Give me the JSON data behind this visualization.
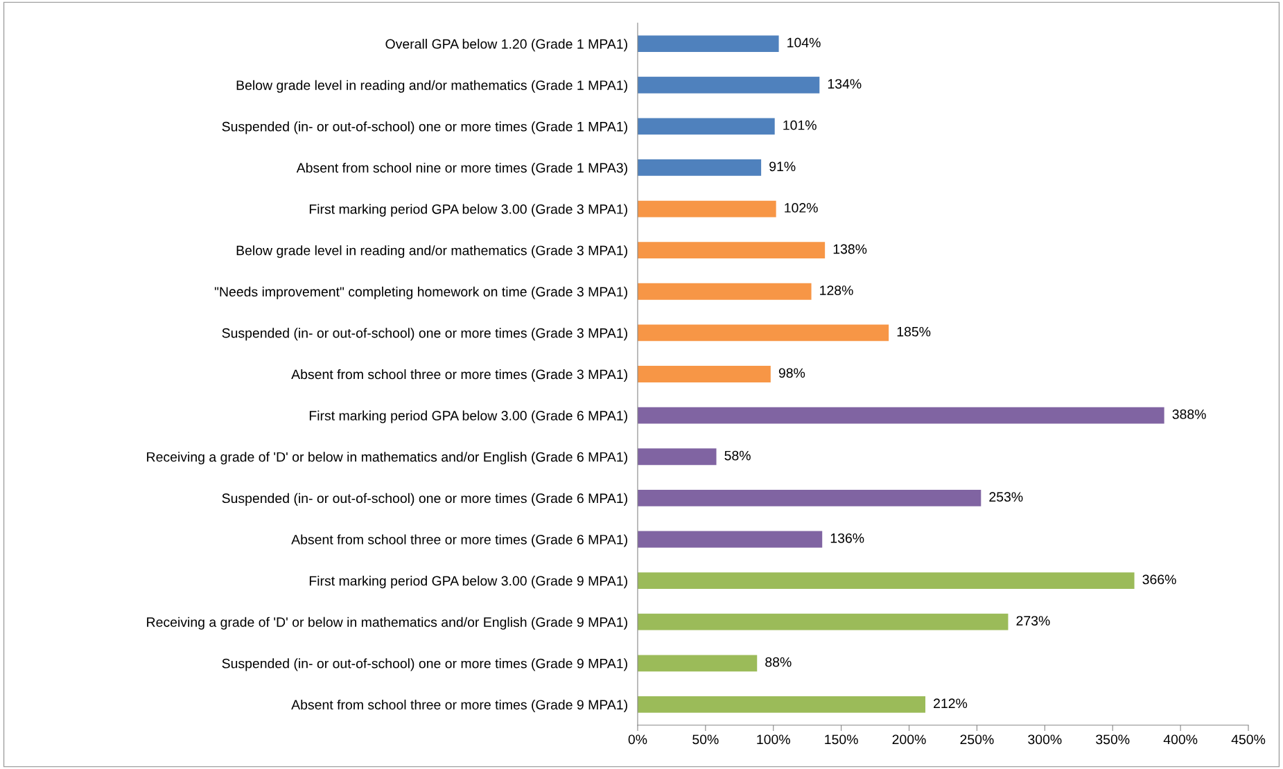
{
  "chart_data": {
    "type": "bar",
    "orientation": "horizontal",
    "categories": [
      "Overall GPA below 1.20 (Grade 1 MPA1)",
      "Below grade level in reading and/or mathematics (Grade 1 MPA1)",
      "Suspended (in- or out-of-school) one or more times (Grade 1 MPA1)",
      "Absent from school nine or more times (Grade 1 MPA3)",
      "First marking period GPA below 3.00 (Grade 3 MPA1)",
      "Below grade level in reading and/or mathematics (Grade 3 MPA1)",
      "\"Needs improvement\" completing homework on time (Grade 3 MPA1)",
      "Suspended (in- or out-of-school) one or more times (Grade 3 MPA1)",
      "Absent from school three or more times (Grade 3 MPA1)",
      "First marking period GPA below 3.00 (Grade 6 MPA1)",
      "Receiving a grade of 'D' or below in mathematics and/or English (Grade 6 MPA1)",
      "Suspended (in- or out-of-school) one or more times (Grade 6 MPA1)",
      "Absent from school three or more times (Grade 6 MPA1)",
      "First marking period GPA below 3.00 (Grade 9 MPA1)",
      "Receiving a grade of 'D' or below in mathematics and/or English (Grade 9 MPA1)",
      "Suspended (in- or out-of-school) one or more times (Grade 9 MPA1)",
      "Absent from school three or more times (Grade 9 MPA1)"
    ],
    "values": [
      104,
      134,
      101,
      91,
      102,
      138,
      128,
      185,
      98,
      388,
      58,
      253,
      136,
      366,
      273,
      88,
      212
    ],
    "value_labels": [
      "104%",
      "134%",
      "101%",
      "91%",
      "102%",
      "138%",
      "128%",
      "185%",
      "98%",
      "388%",
      "58%",
      "253%",
      "136%",
      "366%",
      "273%",
      "88%",
      "212%"
    ],
    "colors": [
      "#4f81bd",
      "#4f81bd",
      "#4f81bd",
      "#4f81bd",
      "#f79646",
      "#f79646",
      "#f79646",
      "#f79646",
      "#f79646",
      "#8064a2",
      "#8064a2",
      "#8064a2",
      "#8064a2",
      "#9bbb59",
      "#9bbb59",
      "#9bbb59",
      "#9bbb59"
    ],
    "xlim": [
      0,
      450
    ],
    "xticks": [
      {
        "value": 0,
        "label": "0%"
      },
      {
        "value": 50,
        "label": "50%"
      },
      {
        "value": 100,
        "label": "100%"
      },
      {
        "value": 150,
        "label": "150%"
      },
      {
        "value": 200,
        "label": "200%"
      },
      {
        "value": 250,
        "label": "250%"
      },
      {
        "value": 300,
        "label": "300%"
      },
      {
        "value": 350,
        "label": "350%"
      },
      {
        "value": 400,
        "label": "400%"
      },
      {
        "value": 450,
        "label": "450%"
      }
    ],
    "grid": false,
    "legend": false
  }
}
